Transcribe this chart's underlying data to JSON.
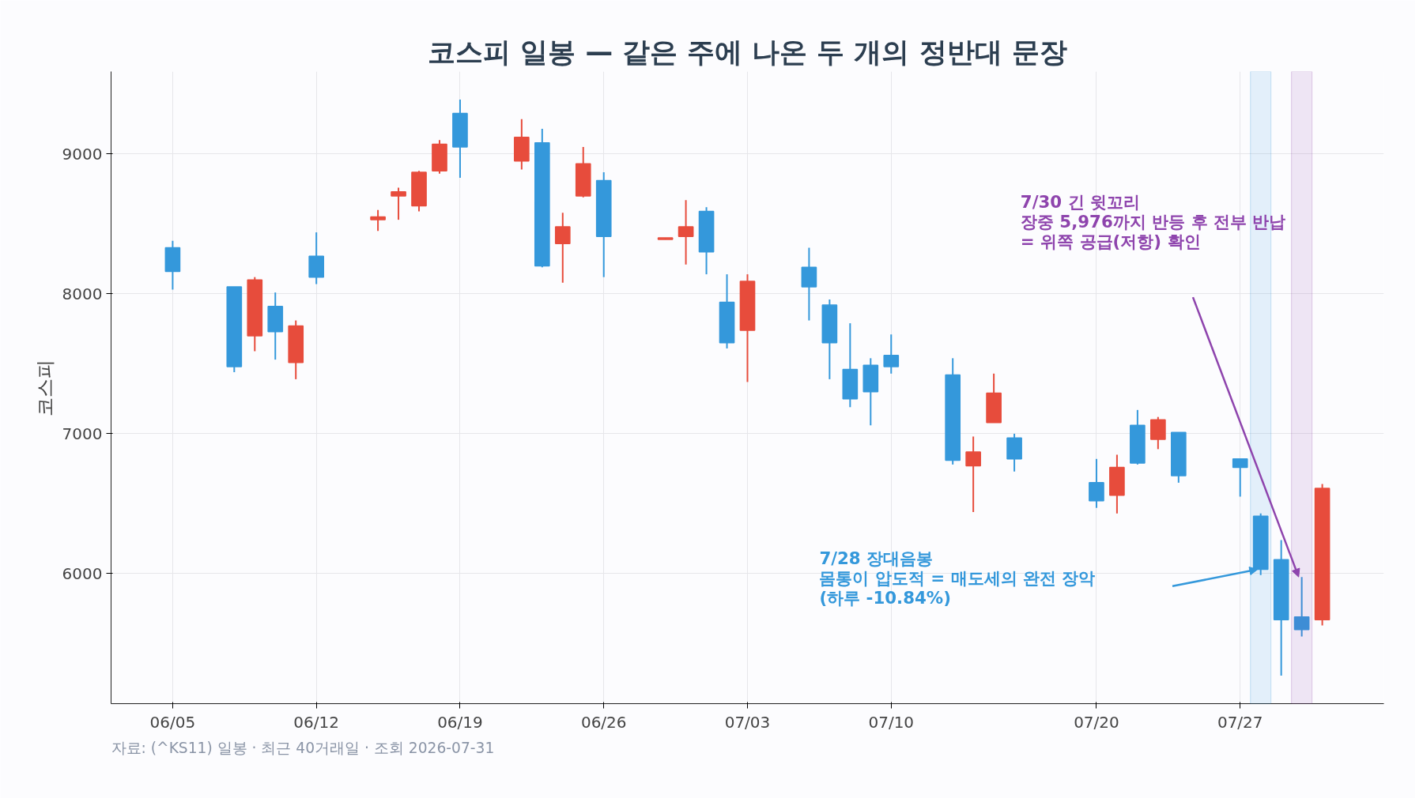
{
  "chart_data": {
    "type": "candlestick",
    "title": "코스피 일봉 — 같은 주에 나온 두 개의 정반대 문장",
    "ylabel": "코스피",
    "x": [
      "2026-06-05",
      "2026-06-08",
      "2026-06-09",
      "2026-06-10",
      "2026-06-11",
      "2026-06-12",
      "2026-06-15",
      "2026-06-16",
      "2026-06-17",
      "2026-06-18",
      "2026-06-19",
      "2026-06-22",
      "2026-06-23",
      "2026-06-24",
      "2026-06-25",
      "2026-06-26",
      "2026-06-29",
      "2026-06-30",
      "2026-07-01",
      "2026-07-02",
      "2026-07-03",
      "2026-07-06",
      "2026-07-07",
      "2026-07-08",
      "2026-07-09",
      "2026-07-10",
      "2026-07-13",
      "2026-07-14",
      "2026-07-15",
      "2026-07-16",
      "2026-07-20",
      "2026-07-21",
      "2026-07-22",
      "2026-07-23",
      "2026-07-24",
      "2026-07-27",
      "2026-07-28",
      "2026-07-29",
      "2026-07-30",
      "2026-07-31"
    ],
    "ohlc": [
      [
        8330,
        8380,
        8030,
        8160
      ],
      [
        8050,
        8050,
        7440,
        7480
      ],
      [
        7700,
        8120,
        7590,
        8100
      ],
      [
        7910,
        8010,
        7530,
        7730
      ],
      [
        7510,
        7810,
        7390,
        7770
      ],
      [
        8270,
        8440,
        8070,
        8120
      ],
      [
        8530,
        8600,
        8450,
        8550
      ],
      [
        8700,
        8760,
        8530,
        8730
      ],
      [
        8630,
        8880,
        8590,
        8870
      ],
      [
        8880,
        9100,
        8860,
        9070
      ],
      [
        9290,
        9390,
        8830,
        9050
      ],
      [
        8950,
        9250,
        8890,
        9120
      ],
      [
        9080,
        9180,
        8190,
        8200
      ],
      [
        8360,
        8580,
        8080,
        8480
      ],
      [
        8700,
        9050,
        8690,
        8930
      ],
      [
        8810,
        8870,
        8120,
        8410
      ],
      [
        8390,
        8400,
        8390,
        8400
      ],
      [
        8410,
        8670,
        8210,
        8480
      ],
      [
        8590,
        8620,
        8140,
        8300
      ],
      [
        7940,
        8140,
        7610,
        7650
      ],
      [
        7740,
        8140,
        7370,
        8090
      ],
      [
        8190,
        8330,
        7810,
        8050
      ],
      [
        7920,
        7960,
        7390,
        7650
      ],
      [
        7460,
        7790,
        7190,
        7250
      ],
      [
        7490,
        7540,
        7060,
        7300
      ],
      [
        7560,
        7710,
        7430,
        7480
      ],
      [
        7420,
        7540,
        6780,
        6810
      ],
      [
        6770,
        6980,
        6440,
        6870
      ],
      [
        7080,
        7430,
        7080,
        7290
      ],
      [
        6970,
        7000,
        6730,
        6820
      ],
      [
        6650,
        6820,
        6470,
        6520
      ],
      [
        6560,
        6850,
        6430,
        6760
      ],
      [
        7060,
        7170,
        6780,
        6790
      ],
      [
        6960,
        7120,
        6890,
        7100
      ],
      [
        7010,
        7010,
        6650,
        6700
      ],
      [
        6820,
        6820,
        6550,
        6760
      ],
      [
        6410,
        6430,
        5990,
        6030
      ],
      [
        6100,
        6240,
        5270,
        5670
      ],
      [
        5690,
        5976,
        5550,
        5600
      ],
      [
        5670,
        6640,
        5630,
        6610
      ]
    ],
    "colors": [
      "#3498db",
      "#3498db",
      "#e74c3c",
      "#3498db",
      "#e74c3c",
      "#3498db",
      "#e74c3c",
      "#e74c3c",
      "#e74c3c",
      "#e74c3c",
      "#3498db",
      "#e74c3c",
      "#3498db",
      "#e74c3c",
      "#e74c3c",
      "#3498db",
      "#e74c3c",
      "#e74c3c",
      "#3498db",
      "#3498db",
      "#e74c3c",
      "#3498db",
      "#3498db",
      "#3498db",
      "#3498db",
      "#3498db",
      "#3498db",
      "#e74c3c",
      "#e74c3c",
      "#3498db",
      "#3498db",
      "#e74c3c",
      "#3498db",
      "#e74c3c",
      "#3498db",
      "#3498db",
      "#3498db",
      "#3498db",
      "#3498db",
      "#e74c3c"
    ],
    "xlim": [
      "2026-06-02",
      "2026-08-03"
    ],
    "ylim": [
      5070,
      9590
    ],
    "yticks": [
      6000,
      7000,
      8000,
      9000
    ],
    "xticks": [
      {
        "value": "2026-06-05",
        "label": "06/05"
      },
      {
        "value": "2026-06-12",
        "label": "06/12"
      },
      {
        "value": "2026-06-19",
        "label": "06/19"
      },
      {
        "value": "2026-06-26",
        "label": "06/26"
      },
      {
        "value": "2026-07-03",
        "label": "07/03"
      },
      {
        "value": "2026-07-10",
        "label": "07/10"
      },
      {
        "value": "2026-07-20",
        "label": "07/20"
      },
      {
        "value": "2026-07-27",
        "label": "07/27"
      }
    ],
    "grid": true,
    "bands": [
      {
        "axis": "x",
        "from": "2026-07-27T12:00",
        "to": "2026-07-28T12:00",
        "color": "#3498db"
      },
      {
        "axis": "x",
        "from": "2026-07-29T12:00",
        "to": "2026-07-30T12:00",
        "color": "#8e44ad"
      }
    ],
    "annotations": [
      "7/28 장대음봉\n몸통이 압도적 = 매도세의 완전 장악\n(하루 -10.84%)",
      "7/30 긴 윗꼬리\n장중 5,976까지 반등 후 전부 반납\n= 위쪽 공급(저항) 확인",
      "자료: (^KS11) 일봉 · 최근 40거래일 · 조회 2026-07-31"
    ]
  }
}
